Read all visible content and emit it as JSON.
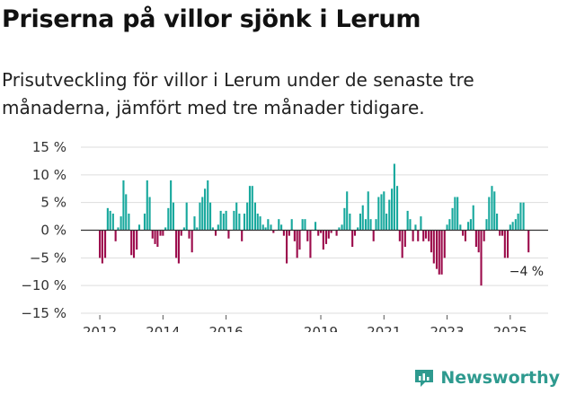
{
  "header": {
    "title": "Priserna på villor sjönk i Lerum",
    "subtitle": "Prisutveckling för villor i Lerum under de senaste tre månaderna, jämfört med tre månader tidigare."
  },
  "colors": {
    "positive": "#17a89d",
    "negative": "#9c0b4b",
    "grid": "#dddddd",
    "zero": "#333333"
  },
  "brand": {
    "name": "Newsworthy",
    "icon": "newsworthy-logo-icon"
  },
  "chart_data": {
    "type": "bar",
    "title": "Priserna på villor sjönk i Lerum",
    "xlabel": "",
    "ylabel": "",
    "ylim": [
      -15,
      15
    ],
    "yticks": [
      15,
      10,
      5,
      0,
      -5,
      -10,
      -15
    ],
    "ytick_labels": [
      "15 %",
      "10 %",
      "5 %",
      "0 %",
      "−5 %",
      "−10 %",
      "−15 %"
    ],
    "xlim": [
      2011.4,
      2026.2
    ],
    "xticks": [
      2012,
      2014,
      2016,
      2019,
      2021,
      2023,
      2025
    ],
    "xtick_labels": [
      "2012",
      "2014",
      "2016",
      "2019",
      "2021",
      "2023",
      "2025"
    ],
    "annotation": {
      "text": "−4 %",
      "x": 2025.6,
      "y": -4
    },
    "series": [
      {
        "name": "Prisutveckling",
        "x": [
          2012.0,
          2012.08,
          2012.17,
          2012.25,
          2012.33,
          2012.42,
          2012.5,
          2012.58,
          2012.67,
          2012.75,
          2012.83,
          2012.92,
          2013.0,
          2013.08,
          2013.17,
          2013.25,
          2013.33,
          2013.42,
          2013.5,
          2013.58,
          2013.67,
          2013.75,
          2013.83,
          2013.92,
          2014.0,
          2014.08,
          2014.17,
          2014.25,
          2014.33,
          2014.42,
          2014.5,
          2014.58,
          2014.67,
          2014.75,
          2014.83,
          2014.92,
          2015.0,
          2015.08,
          2015.17,
          2015.25,
          2015.33,
          2015.42,
          2015.5,
          2015.58,
          2015.67,
          2015.75,
          2015.83,
          2015.92,
          2016.0,
          2016.08,
          2016.17,
          2016.25,
          2016.33,
          2016.42,
          2016.5,
          2016.58,
          2016.67,
          2016.75,
          2016.83,
          2016.92,
          2017.0,
          2017.08,
          2017.17,
          2017.25,
          2017.33,
          2017.42,
          2017.5,
          2017.58,
          2017.67,
          2017.75,
          2017.83,
          2017.92,
          2018.0,
          2018.08,
          2018.17,
          2018.25,
          2018.33,
          2018.42,
          2018.5,
          2018.58,
          2018.67,
          2018.75,
          2018.83,
          2018.92,
          2019.0,
          2019.08,
          2019.17,
          2019.25,
          2019.33,
          2019.42,
          2019.5,
          2019.58,
          2019.67,
          2019.75,
          2019.83,
          2019.92,
          2020.0,
          2020.08,
          2020.17,
          2020.25,
          2020.33,
          2020.42,
          2020.5,
          2020.58,
          2020.67,
          2020.75,
          2020.83,
          2020.92,
          2021.0,
          2021.08,
          2021.17,
          2021.25,
          2021.33,
          2021.42,
          2021.5,
          2021.58,
          2021.67,
          2021.75,
          2021.83,
          2021.92,
          2022.0,
          2022.08,
          2022.17,
          2022.25,
          2022.33,
          2022.42,
          2022.5,
          2022.58,
          2022.67,
          2022.75,
          2022.83,
          2022.92,
          2023.0,
          2023.08,
          2023.17,
          2023.25,
          2023.33,
          2023.42,
          2023.5,
          2023.58,
          2023.67,
          2023.75,
          2023.83,
          2023.92,
          2024.0,
          2024.08,
          2024.17,
          2024.25,
          2024.33,
          2024.42,
          2024.5,
          2024.58,
          2024.67,
          2024.75,
          2024.83,
          2024.92,
          2025.0,
          2025.08,
          2025.17,
          2025.25,
          2025.33,
          2025.42,
          2025.5,
          2025.58
        ],
        "values": [
          -5,
          -6,
          -5,
          4,
          3.5,
          3,
          -2,
          0.5,
          2.5,
          9,
          6.5,
          3,
          -4.5,
          -5,
          -3.5,
          1,
          0,
          3,
          9,
          6,
          -1.5,
          -2.5,
          -3,
          -1,
          -1,
          0.5,
          4,
          9,
          5,
          -5,
          -6,
          -1,
          0.5,
          5,
          -1.5,
          -4,
          2.5,
          0.5,
          5,
          6,
          7.5,
          9,
          5,
          0.5,
          -1,
          1,
          3.5,
          3,
          3.5,
          -1.5,
          0,
          3.5,
          5,
          3,
          -2,
          3,
          5,
          8,
          8,
          5,
          3,
          2.5,
          1,
          0.5,
          2,
          1,
          -0.5,
          0,
          2,
          1,
          -1,
          -6,
          -1,
          2,
          -2,
          -5,
          -3.5,
          2,
          2,
          -2,
          -5,
          0,
          1.5,
          -1,
          -0.5,
          -3.5,
          -2.5,
          -1.5,
          -0.5,
          0,
          -1,
          0.5,
          1,
          4,
          7,
          3,
          -3,
          -1,
          0.5,
          3,
          4.5,
          2,
          7,
          2,
          -2,
          2,
          6,
          6.5,
          7,
          3,
          5.5,
          7.5,
          12,
          8,
          -2,
          -5,
          -3,
          3.5,
          2,
          -2,
          1,
          -2,
          2.5,
          -2,
          -1.5,
          -2,
          -4,
          -6,
          -7,
          -8,
          -8,
          -5,
          1,
          2,
          4,
          6,
          6,
          1,
          -1,
          -2,
          1.5,
          2,
          4.5,
          -3,
          -4,
          -10,
          -2,
          2,
          6,
          8,
          7,
          3,
          -1,
          -1,
          -5,
          -5,
          1,
          1.5,
          2,
          3,
          5,
          5,
          0,
          -4
        ]
      }
    ]
  }
}
